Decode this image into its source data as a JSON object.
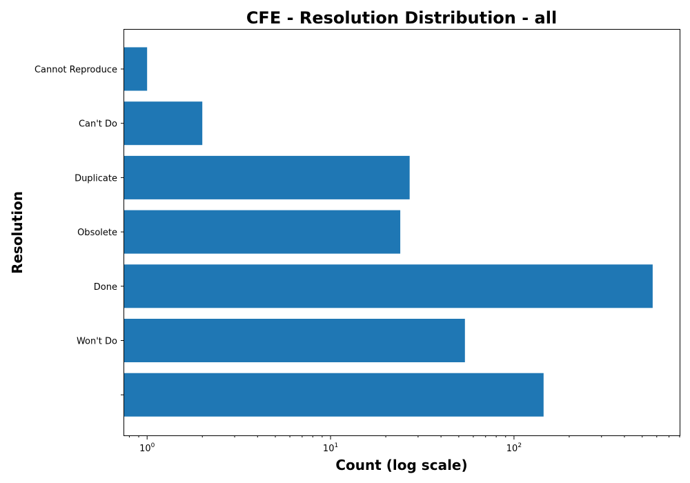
{
  "chart_data": {
    "type": "bar",
    "orientation": "horizontal",
    "title": "CFE - Resolution Distribution - all",
    "xlabel": "Count (log scale)",
    "ylabel": "Resolution",
    "x_scale": "log",
    "xlim": [
      0.75,
      800
    ],
    "x_major_ticks": [
      {
        "value": 1,
        "base": "10",
        "exp": "0"
      },
      {
        "value": 10,
        "base": "10",
        "exp": "1"
      },
      {
        "value": 100,
        "base": "10",
        "exp": "2"
      }
    ],
    "categories": [
      "Cannot Reproduce",
      "Can't Do",
      "Duplicate",
      "Obsolete",
      "Done",
      "Won't Do",
      ""
    ],
    "values": [
      1,
      2,
      27,
      24,
      570,
      54,
      145
    ],
    "bar_color": "#1f77b4",
    "grid": false,
    "legend": "none"
  }
}
